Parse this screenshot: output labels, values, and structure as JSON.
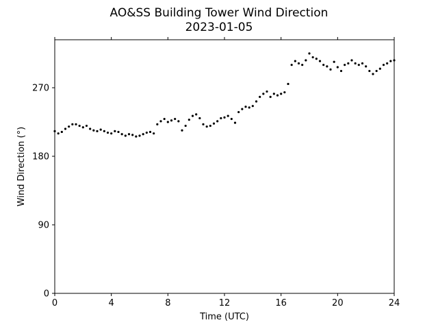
{
  "chart_data": {
    "type": "scatter",
    "title": "AO&SS Building Tower Wind Direction",
    "subtitle": "2023-01-05",
    "xlabel": "Time (UTC)",
    "ylabel": "Wind Direction (°)",
    "xlim": [
      0,
      24
    ],
    "ylim": [
      0,
      333
    ],
    "x_ticks": [
      0,
      4,
      8,
      12,
      16,
      20,
      24
    ],
    "x_tick_labels": [
      "0",
      "4",
      "8",
      "12",
      "16",
      "20",
      "24"
    ],
    "y_ticks": [
      0,
      90,
      180,
      270
    ],
    "y_tick_labels": [
      "0",
      "90",
      "180",
      "270"
    ],
    "grid": false,
    "legend": "none",
    "marker_color": "#000000",
    "series": [
      {
        "x": [
          0.0,
          0.25,
          0.5,
          0.75,
          1.0,
          1.25,
          1.5,
          1.75,
          2.0,
          2.25,
          2.5,
          2.75,
          3.0,
          3.25,
          3.5,
          3.75,
          4.0,
          4.25,
          4.5,
          4.75,
          5.0,
          5.25,
          5.5,
          5.75,
          6.0,
          6.25,
          6.5,
          6.75,
          7.0,
          7.25,
          7.5,
          7.75,
          8.0,
          8.25,
          8.5,
          8.75,
          9.0,
          9.25,
          9.5,
          9.75,
          10.0,
          10.25,
          10.5,
          10.75,
          11.0,
          11.25,
          11.5,
          11.75,
          12.0,
          12.25,
          12.5,
          12.75,
          13.0,
          13.25,
          13.5,
          13.75,
          14.0,
          14.25,
          14.5,
          14.75,
          15.0,
          15.25,
          15.5,
          15.75,
          16.0,
          16.25,
          16.5,
          16.75,
          17.0,
          17.25,
          17.5,
          17.75,
          18.0,
          18.25,
          18.5,
          18.75,
          19.0,
          19.25,
          19.5,
          19.75,
          20.0,
          20.25,
          20.5,
          20.75,
          21.0,
          21.25,
          21.5,
          21.75,
          22.0,
          22.25,
          22.5,
          22.75,
          23.0,
          23.25,
          23.5,
          23.75,
          24.0
        ],
        "values": [
          213,
          210,
          212,
          216,
          219,
          222,
          222,
          220,
          218,
          220,
          216,
          214,
          213,
          215,
          213,
          211,
          210,
          213,
          212,
          209,
          207,
          209,
          208,
          206,
          207,
          209,
          211,
          212,
          210,
          222,
          226,
          229,
          225,
          227,
          229,
          226,
          214,
          220,
          228,
          233,
          235,
          230,
          222,
          219,
          220,
          223,
          226,
          230,
          231,
          233,
          229,
          224,
          238,
          242,
          245,
          244,
          246,
          252,
          258,
          262,
          265,
          258,
          262,
          260,
          262,
          264,
          275,
          300,
          305,
          302,
          300,
          306,
          315,
          310,
          308,
          305,
          300,
          298,
          294,
          304,
          297,
          292,
          300,
          302,
          306,
          302,
          300,
          302,
          298,
          292,
          288,
          292,
          295,
          300,
          302,
          305,
          306
        ]
      }
    ]
  }
}
